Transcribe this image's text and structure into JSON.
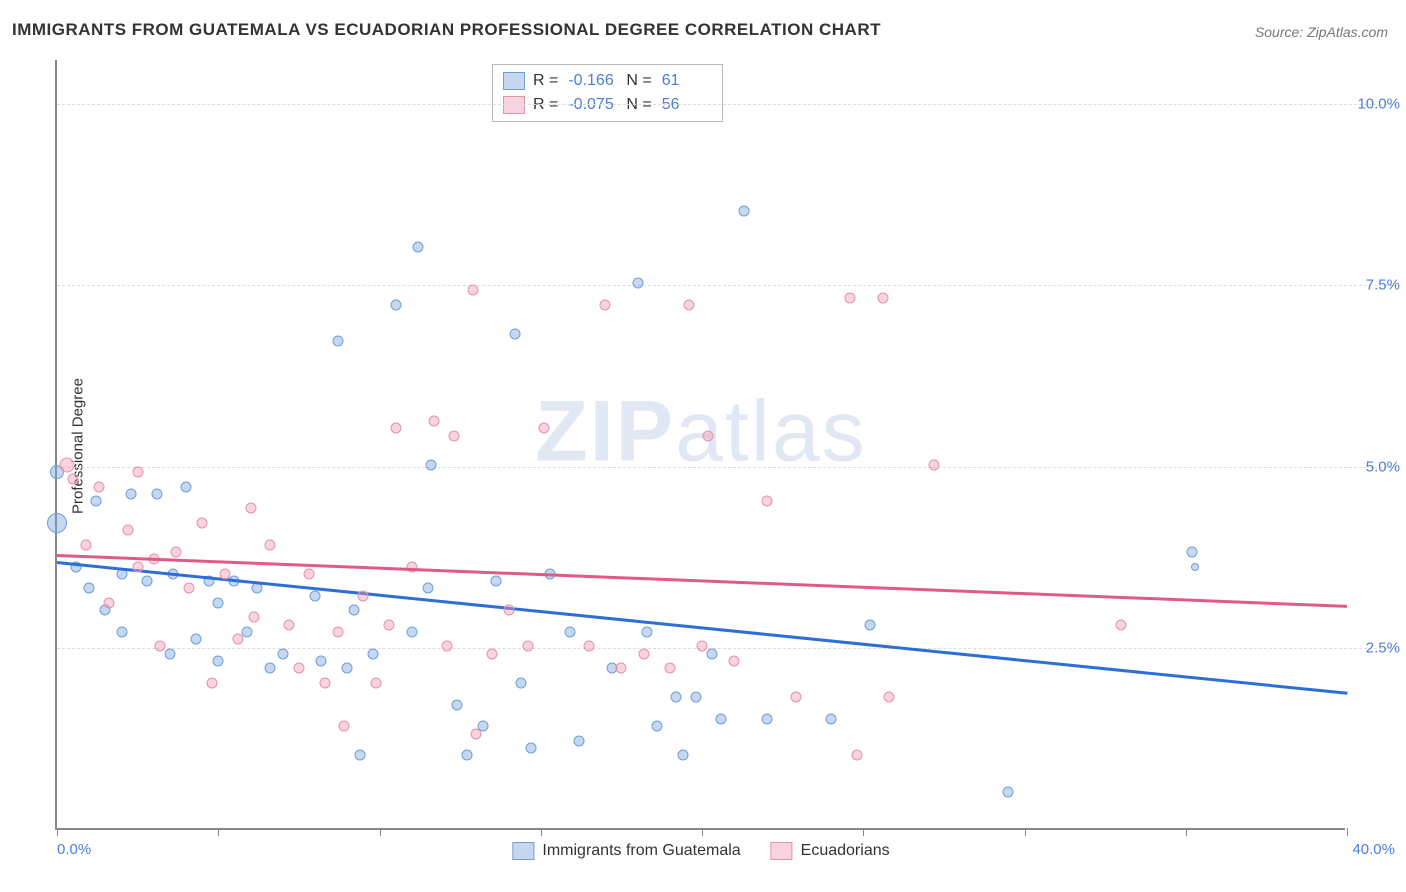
{
  "title": "IMMIGRANTS FROM GUATEMALA VS ECUADORIAN PROFESSIONAL DEGREE CORRELATION CHART",
  "source_label": "Source: ZipAtlas.com",
  "ylabel": "Professional Degree",
  "watermark_a": "ZIP",
  "watermark_b": "atlas",
  "chart": {
    "type": "scatter",
    "xlim": [
      0,
      40
    ],
    "ylim": [
      0,
      10.6
    ],
    "x_label_min": "0.0%",
    "x_label_max": "40.0%",
    "y_ticks": [
      2.5,
      5.0,
      7.5,
      10.0
    ],
    "y_tick_labels": [
      "2.5%",
      "5.0%",
      "7.5%",
      "10.0%"
    ],
    "x_tick_positions": [
      0,
      5,
      10,
      15,
      20,
      25,
      30,
      35,
      40
    ],
    "grid_color": "#dddddd",
    "axis_color": "#888888",
    "background": "#ffffff",
    "series": [
      {
        "name": "Immigrants from Guatemala",
        "fill": "rgba(120,160,220,0.42)",
        "stroke": "#6f9fd8",
        "trend_color": "#2d6fd6",
        "trend": {
          "y_at_x0": 3.7,
          "y_at_xmax": 1.9
        },
        "r_label": "R =",
        "r_value": "-0.166",
        "n_label": "N =",
        "n_value": "61",
        "points": [
          {
            "x": 0.0,
            "y": 4.2,
            "s": 20
          },
          {
            "x": 0.0,
            "y": 4.9,
            "s": 14
          },
          {
            "x": 0.6,
            "y": 3.6,
            "s": 11
          },
          {
            "x": 1.0,
            "y": 3.3,
            "s": 11
          },
          {
            "x": 1.2,
            "y": 4.5,
            "s": 11
          },
          {
            "x": 1.5,
            "y": 3.0,
            "s": 11
          },
          {
            "x": 2.0,
            "y": 2.7,
            "s": 11
          },
          {
            "x": 2.0,
            "y": 3.5,
            "s": 11
          },
          {
            "x": 2.3,
            "y": 4.6,
            "s": 11
          },
          {
            "x": 2.8,
            "y": 3.4,
            "s": 11
          },
          {
            "x": 3.1,
            "y": 4.6,
            "s": 11
          },
          {
            "x": 3.5,
            "y": 2.4,
            "s": 11
          },
          {
            "x": 3.6,
            "y": 3.5,
            "s": 11
          },
          {
            "x": 4.0,
            "y": 4.7,
            "s": 11
          },
          {
            "x": 4.3,
            "y": 2.6,
            "s": 11
          },
          {
            "x": 4.7,
            "y": 3.4,
            "s": 11
          },
          {
            "x": 5.0,
            "y": 3.1,
            "s": 11
          },
          {
            "x": 5.0,
            "y": 2.3,
            "s": 11
          },
          {
            "x": 5.5,
            "y": 3.4,
            "s": 11
          },
          {
            "x": 5.9,
            "y": 2.7,
            "s": 11
          },
          {
            "x": 6.2,
            "y": 3.3,
            "s": 11
          },
          {
            "x": 6.6,
            "y": 2.2,
            "s": 11
          },
          {
            "x": 7.0,
            "y": 2.4,
            "s": 11
          },
          {
            "x": 8.0,
            "y": 3.2,
            "s": 11
          },
          {
            "x": 8.2,
            "y": 2.3,
            "s": 11
          },
          {
            "x": 8.7,
            "y": 6.7,
            "s": 11
          },
          {
            "x": 9.0,
            "y": 2.2,
            "s": 11
          },
          {
            "x": 9.2,
            "y": 3.0,
            "s": 11
          },
          {
            "x": 9.4,
            "y": 1.0,
            "s": 11
          },
          {
            "x": 9.8,
            "y": 2.4,
            "s": 11
          },
          {
            "x": 10.5,
            "y": 7.2,
            "s": 11
          },
          {
            "x": 11.0,
            "y": 2.7,
            "s": 11
          },
          {
            "x": 11.2,
            "y": 8.0,
            "s": 11
          },
          {
            "x": 11.5,
            "y": 3.3,
            "s": 11
          },
          {
            "x": 11.6,
            "y": 5.0,
            "s": 11
          },
          {
            "x": 12.4,
            "y": 1.7,
            "s": 11
          },
          {
            "x": 12.7,
            "y": 1.0,
            "s": 11
          },
          {
            "x": 13.2,
            "y": 1.4,
            "s": 11
          },
          {
            "x": 13.6,
            "y": 3.4,
            "s": 11
          },
          {
            "x": 14.2,
            "y": 6.8,
            "s": 11
          },
          {
            "x": 14.4,
            "y": 2.0,
            "s": 11
          },
          {
            "x": 14.7,
            "y": 1.1,
            "s": 11
          },
          {
            "x": 15.3,
            "y": 3.5,
            "s": 11
          },
          {
            "x": 15.9,
            "y": 2.7,
            "s": 11
          },
          {
            "x": 16.2,
            "y": 1.2,
            "s": 11
          },
          {
            "x": 17.2,
            "y": 2.2,
            "s": 11
          },
          {
            "x": 18.0,
            "y": 7.5,
            "s": 11
          },
          {
            "x": 18.3,
            "y": 2.7,
            "s": 11
          },
          {
            "x": 18.6,
            "y": 1.4,
            "s": 11
          },
          {
            "x": 19.2,
            "y": 1.8,
            "s": 11
          },
          {
            "x": 19.4,
            "y": 1.0,
            "s": 11
          },
          {
            "x": 19.8,
            "y": 1.8,
            "s": 11
          },
          {
            "x": 20.3,
            "y": 2.4,
            "s": 11
          },
          {
            "x": 20.6,
            "y": 1.5,
            "s": 11
          },
          {
            "x": 21.3,
            "y": 8.5,
            "s": 11
          },
          {
            "x": 22.0,
            "y": 1.5,
            "s": 11
          },
          {
            "x": 24.0,
            "y": 1.5,
            "s": 11
          },
          {
            "x": 25.2,
            "y": 2.8,
            "s": 11
          },
          {
            "x": 29.5,
            "y": 0.5,
            "s": 11
          },
          {
            "x": 35.2,
            "y": 3.8,
            "s": 11
          },
          {
            "x": 35.3,
            "y": 3.6,
            "s": 8
          }
        ]
      },
      {
        "name": "Ecuadorians",
        "fill": "rgba(240,150,175,0.42)",
        "stroke": "#e592ab",
        "trend_color": "#e05a84",
        "trend": {
          "y_at_x0": 3.8,
          "y_at_xmax": 3.1
        },
        "r_label": "R =",
        "r_value": "-0.075",
        "n_label": "N =",
        "n_value": "56",
        "points": [
          {
            "x": 0.3,
            "y": 5.0,
            "s": 15
          },
          {
            "x": 0.5,
            "y": 4.8,
            "s": 11
          },
          {
            "x": 0.9,
            "y": 3.9,
            "s": 11
          },
          {
            "x": 1.3,
            "y": 4.7,
            "s": 11
          },
          {
            "x": 1.6,
            "y": 3.1,
            "s": 11
          },
          {
            "x": 2.2,
            "y": 4.1,
            "s": 11
          },
          {
            "x": 2.5,
            "y": 3.6,
            "s": 11
          },
          {
            "x": 2.5,
            "y": 4.9,
            "s": 11
          },
          {
            "x": 3.0,
            "y": 3.7,
            "s": 11
          },
          {
            "x": 3.2,
            "y": 2.5,
            "s": 11
          },
          {
            "x": 3.7,
            "y": 3.8,
            "s": 11
          },
          {
            "x": 4.1,
            "y": 3.3,
            "s": 11
          },
          {
            "x": 4.5,
            "y": 4.2,
            "s": 11
          },
          {
            "x": 5.2,
            "y": 3.5,
            "s": 11
          },
          {
            "x": 5.6,
            "y": 2.6,
            "s": 11
          },
          {
            "x": 6.1,
            "y": 2.9,
            "s": 11
          },
          {
            "x": 6.6,
            "y": 3.9,
            "s": 11
          },
          {
            "x": 7.2,
            "y": 2.8,
            "s": 11
          },
          {
            "x": 7.5,
            "y": 2.2,
            "s": 11
          },
          {
            "x": 7.8,
            "y": 3.5,
            "s": 11
          },
          {
            "x": 8.3,
            "y": 2.0,
            "s": 11
          },
          {
            "x": 8.7,
            "y": 2.7,
            "s": 11
          },
          {
            "x": 8.9,
            "y": 1.4,
            "s": 11
          },
          {
            "x": 9.5,
            "y": 3.2,
            "s": 11
          },
          {
            "x": 9.9,
            "y": 2.0,
            "s": 11
          },
          {
            "x": 10.3,
            "y": 2.8,
            "s": 11
          },
          {
            "x": 10.5,
            "y": 5.5,
            "s": 11
          },
          {
            "x": 11.0,
            "y": 3.6,
            "s": 11
          },
          {
            "x": 11.7,
            "y": 5.6,
            "s": 11
          },
          {
            "x": 12.1,
            "y": 2.5,
            "s": 11
          },
          {
            "x": 12.3,
            "y": 5.4,
            "s": 11
          },
          {
            "x": 12.9,
            "y": 7.4,
            "s": 11
          },
          {
            "x": 13.5,
            "y": 2.4,
            "s": 11
          },
          {
            "x": 14.0,
            "y": 3.0,
            "s": 11
          },
          {
            "x": 14.6,
            "y": 2.5,
            "s": 11
          },
          {
            "x": 15.1,
            "y": 5.5,
            "s": 11
          },
          {
            "x": 16.5,
            "y": 2.5,
            "s": 11
          },
          {
            "x": 17.0,
            "y": 7.2,
            "s": 11
          },
          {
            "x": 17.5,
            "y": 2.2,
            "s": 11
          },
          {
            "x": 18.2,
            "y": 2.4,
            "s": 11
          },
          {
            "x": 19.0,
            "y": 2.2,
            "s": 11
          },
          {
            "x": 19.6,
            "y": 7.2,
            "s": 11
          },
          {
            "x": 20.0,
            "y": 2.5,
            "s": 11
          },
          {
            "x": 20.2,
            "y": 5.4,
            "s": 11
          },
          {
            "x": 21.0,
            "y": 2.3,
            "s": 11
          },
          {
            "x": 22.0,
            "y": 4.5,
            "s": 11
          },
          {
            "x": 22.9,
            "y": 1.8,
            "s": 11
          },
          {
            "x": 24.6,
            "y": 7.3,
            "s": 11
          },
          {
            "x": 24.8,
            "y": 1.0,
            "s": 11
          },
          {
            "x": 25.6,
            "y": 7.3,
            "s": 11
          },
          {
            "x": 25.8,
            "y": 1.8,
            "s": 11
          },
          {
            "x": 27.2,
            "y": 5.0,
            "s": 11
          },
          {
            "x": 33.0,
            "y": 2.8,
            "s": 11
          },
          {
            "x": 13.0,
            "y": 1.3,
            "s": 11
          },
          {
            "x": 6.0,
            "y": 4.4,
            "s": 11
          },
          {
            "x": 4.8,
            "y": 2.0,
            "s": 11
          }
        ]
      }
    ]
  }
}
